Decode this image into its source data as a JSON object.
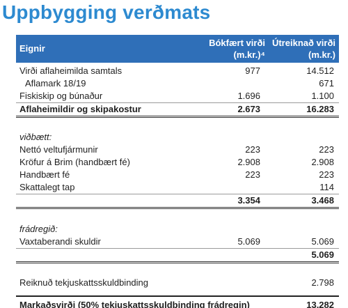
{
  "title": "Uppbygging verðmats",
  "header": {
    "label": "Eignir",
    "col1_line1": "Bókfært virði",
    "col1_line2": "(m.kr.)⁴",
    "col2_line1": "Útreiknað virði",
    "col2_line2": "(m.kr.)"
  },
  "rows": {
    "r1": {
      "label": "Virði aflaheimilda samtals",
      "v1": "977",
      "v2": "14.512"
    },
    "r2": {
      "label": "Aflamark 18/19",
      "v1": "",
      "v2": "671"
    },
    "r3": {
      "label": "Fiskiskip og búnaður",
      "v1": "1.696",
      "v2": "1.100"
    },
    "r4": {
      "label": "Aflaheimildir og skipakostur",
      "v1": "2.673",
      "v2": "16.283"
    },
    "r5": {
      "label": "viðbætt:"
    },
    "r6": {
      "label": "Nettó veltufjármunir",
      "v1": "223",
      "v2": "223"
    },
    "r7": {
      "label": "Kröfur á Brim (handbært fé)",
      "v1": "2.908",
      "v2": "2.908"
    },
    "r8": {
      "label": "Handbært fé",
      "v1": "223",
      "v2": "223"
    },
    "r9": {
      "label": "Skattalegt tap",
      "v1": "",
      "v2": "114"
    },
    "r10": {
      "v1": "3.354",
      "v2": "3.468"
    },
    "r11": {
      "label": "frádregið:"
    },
    "r12": {
      "label": "Vaxtaberandi skuldir",
      "v1": "5.069",
      "v2": "5.069"
    },
    "r13": {
      "v2": "5.069"
    },
    "r14": {
      "label": "Reiknuð tekjuskattsskuldbinding",
      "v2": "2.798"
    },
    "r15": {
      "label": "Markaðsvirði (50% tekjuskattsskuldbinding frádregin)",
      "v2": "13.282"
    }
  }
}
